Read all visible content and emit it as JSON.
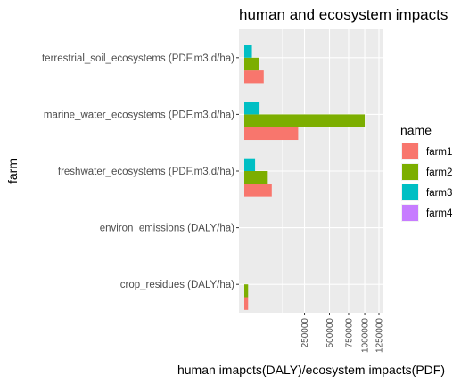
{
  "chart_data": {
    "type": "bar",
    "orientation": "horizontal",
    "title": "human and ecosystem impacts",
    "xlabel": "human imapcts(DALY)/ecosystem impacts(PDF)",
    "ylabel": "farm",
    "categories": [
      "crop_residues (DALY/ha)",
      "environ_emissions (DALY/ha)",
      "freshwater_ecosystems (PDF.m3.d/ha)",
      "marine_water_ecosystems (PDF.m3.d/ha)",
      "terrestrial_soil_ecosystems (PDF.m3.d/ha)"
    ],
    "series": [
      {
        "name": "farm1",
        "color": "#F8766D",
        "values": [
          1000,
          0,
          52000,
          200000,
          26000
        ]
      },
      {
        "name": "farm2",
        "color": "#7CAE00",
        "values": [
          1000,
          0,
          38000,
          1000000,
          15000
        ]
      },
      {
        "name": "farm3",
        "color": "#00BFC4",
        "values": [
          0,
          0,
          8000,
          16000,
          4000
        ]
      },
      {
        "name": "farm4",
        "color": "#C77CFF",
        "values": [
          0,
          0,
          0,
          0,
          0
        ]
      }
    ],
    "x_scale": "sqrt",
    "xlim": [
      0,
      1300000
    ],
    "x_ticks": [
      250000,
      500000,
      750000,
      1000000,
      1250000
    ],
    "x_tick_labels": [
      "250000",
      "500000",
      "750000",
      "1000000",
      "1250000"
    ],
    "legend_title": "name",
    "legend_position": "right",
    "grid": true,
    "panel_background": "#EBEBEB"
  }
}
